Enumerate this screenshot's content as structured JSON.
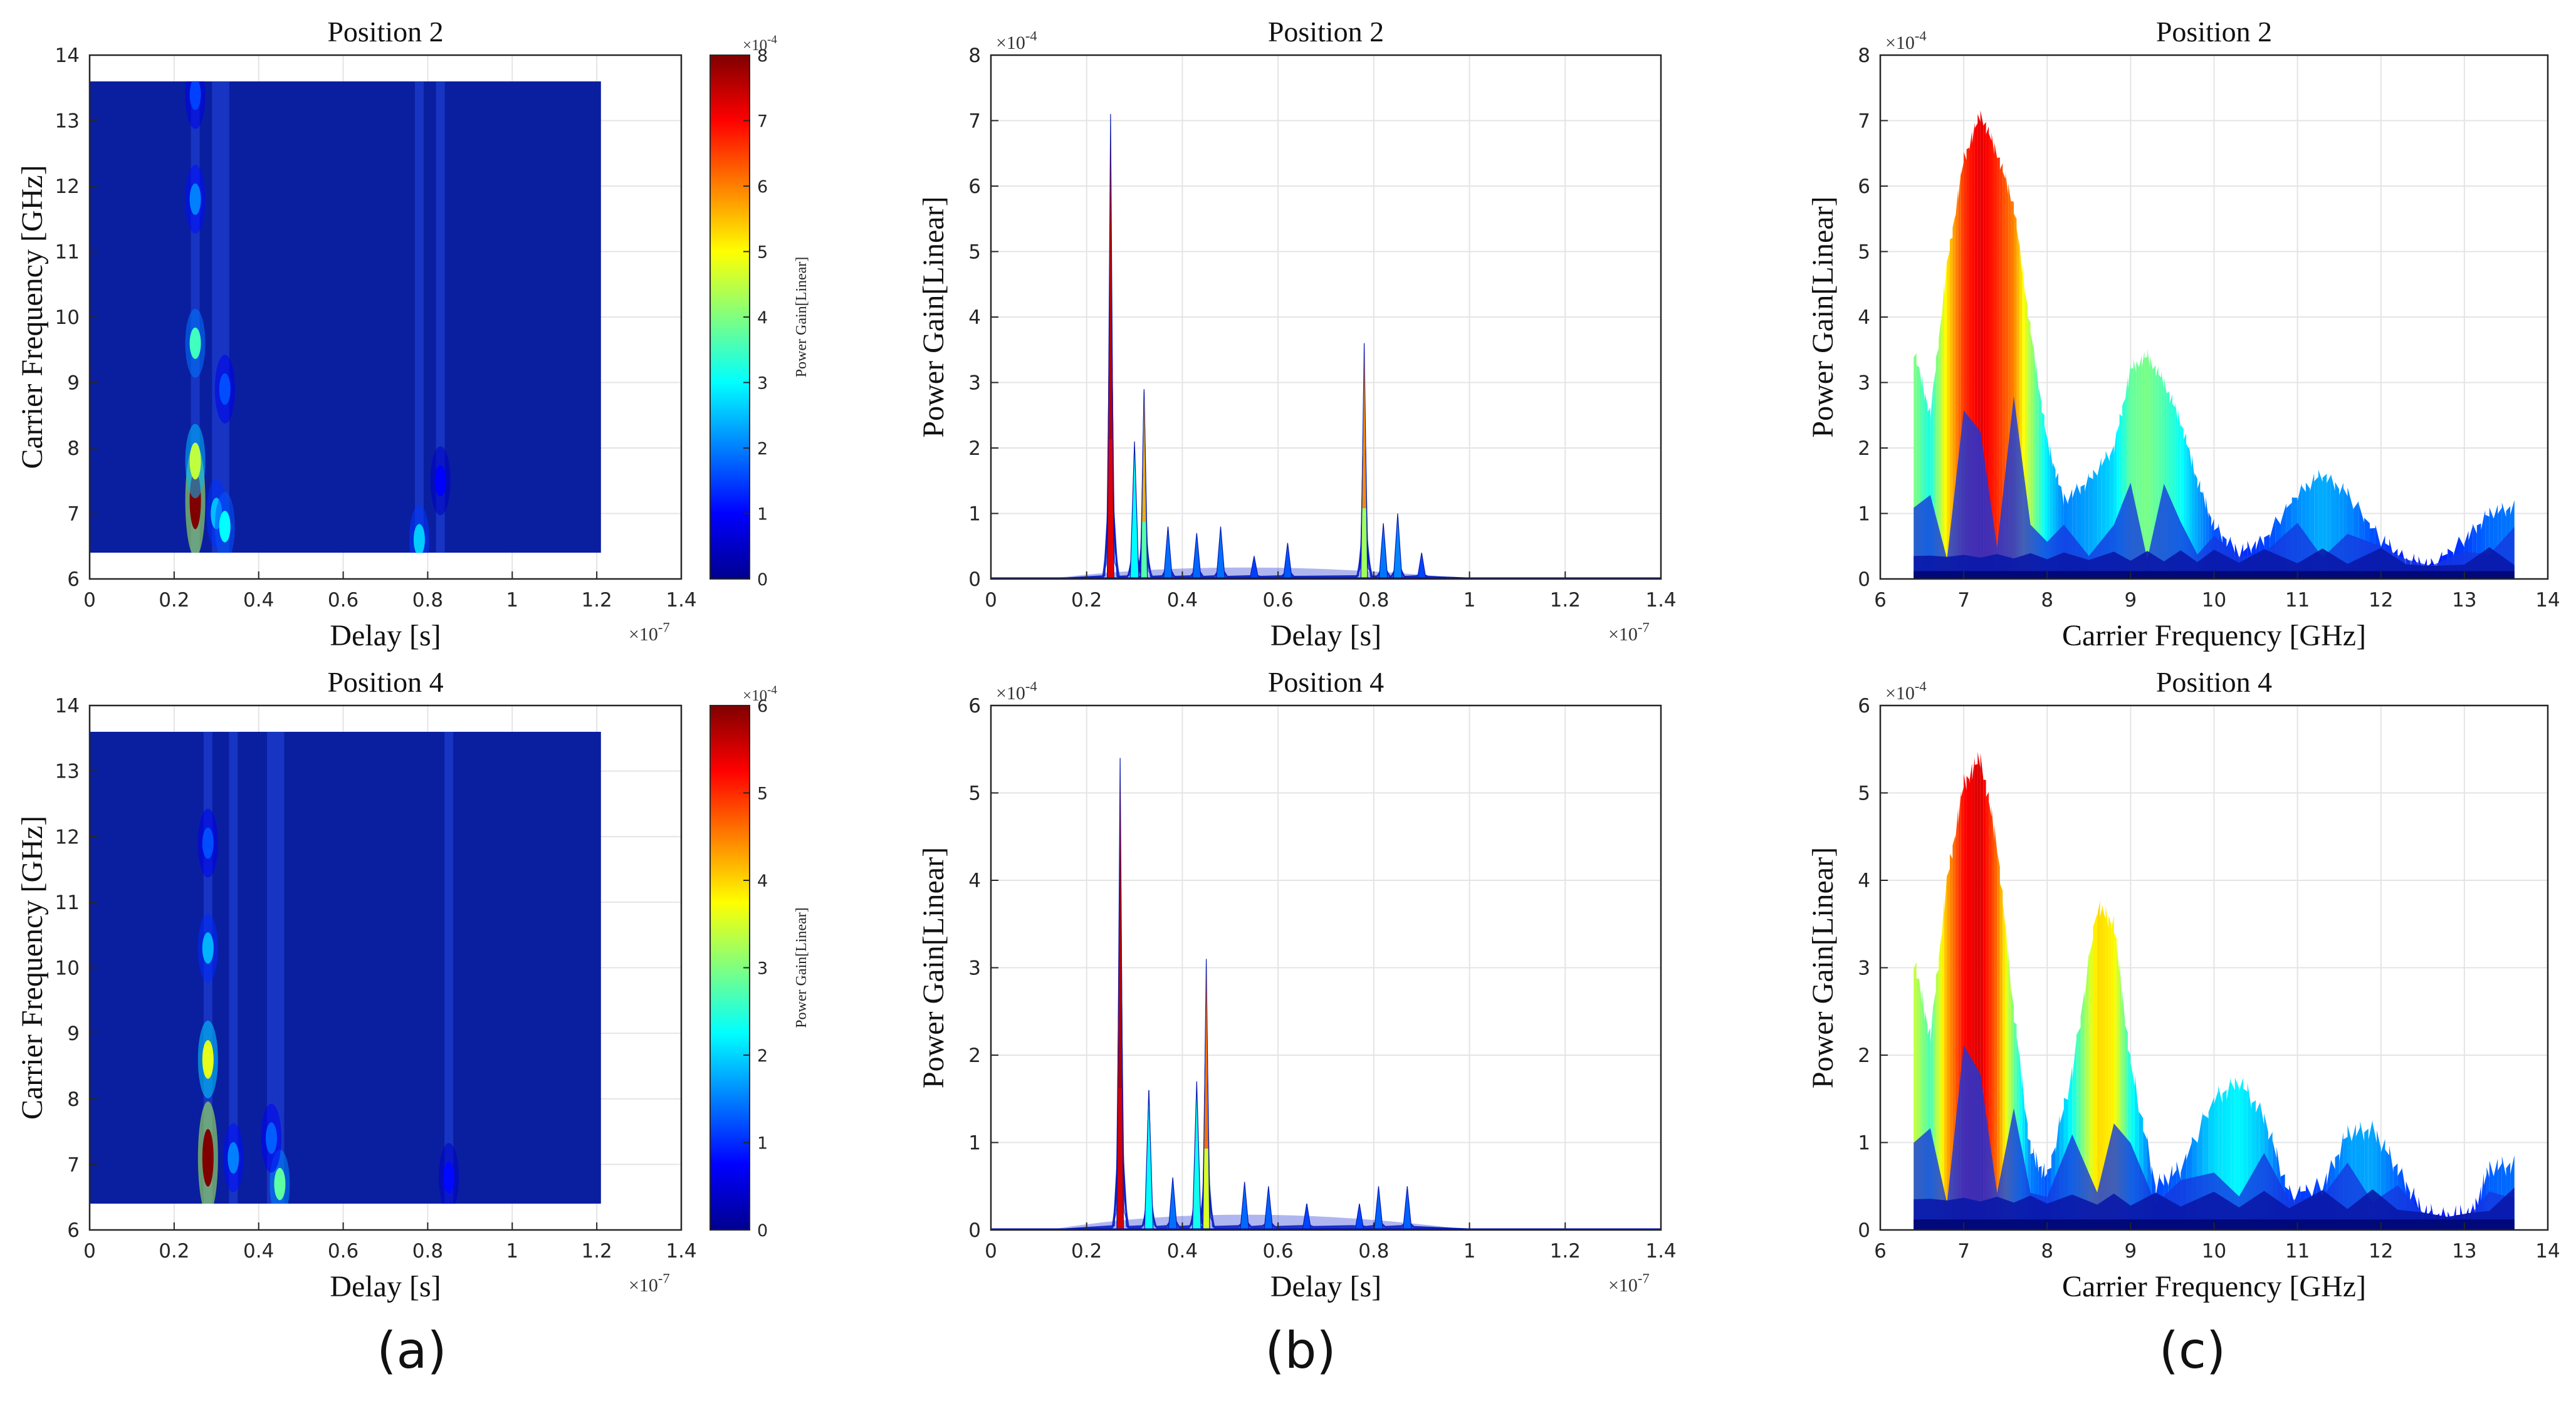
{
  "chart_data": [
    {
      "id": "a2",
      "type": "heatmap",
      "title": "Position 2",
      "xlabel": "Delay [s]",
      "ylabel": "Carrier Frequency [GHz]",
      "xlim": [
        0,
        1.4
      ],
      "ylim": [
        6,
        14
      ],
      "xticks": [
        "0",
        "0.2",
        "0.4",
        "0.6",
        "0.8",
        "1",
        "1.2",
        "1.4"
      ],
      "yticks": [
        "6",
        "7",
        "8",
        "9",
        "10",
        "11",
        "12",
        "13",
        "14"
      ],
      "xexponent": "×10^-7",
      "data_extent": {
        "delay": [
          0,
          1.21
        ],
        "freq": [
          6.4,
          13.6
        ]
      },
      "colorbar": {
        "label": "Power Gain[Linear]",
        "ticks": [
          "0",
          "1",
          "2",
          "3",
          "4",
          "5",
          "6",
          "7",
          "8"
        ],
        "max": 8,
        "exponent": "×10^-4"
      },
      "hotspots": [
        {
          "delay": 0.25,
          "freq": 7.2,
          "value": 8.0
        },
        {
          "delay": 0.25,
          "freq": 7.8,
          "value": 4.5
        },
        {
          "delay": 0.25,
          "freq": 9.6,
          "value": 3.5
        },
        {
          "delay": 0.25,
          "freq": 11.8,
          "value": 2.0
        },
        {
          "delay": 0.25,
          "freq": 13.4,
          "value": 1.5
        },
        {
          "delay": 0.3,
          "freq": 7.0,
          "value": 2.5
        },
        {
          "delay": 0.32,
          "freq": 6.8,
          "value": 3.0
        },
        {
          "delay": 0.32,
          "freq": 8.9,
          "value": 1.6
        },
        {
          "delay": 0.78,
          "freq": 6.6,
          "value": 2.6
        },
        {
          "delay": 0.83,
          "freq": 7.5,
          "value": 1.0
        }
      ]
    },
    {
      "id": "b2",
      "type": "line",
      "title": "Position 2",
      "xlabel": "Delay [s]",
      "ylabel": "Power Gain[Linear]",
      "xlim": [
        0,
        1.4
      ],
      "ylim": [
        0,
        8
      ],
      "xticks": [
        "0",
        "0.2",
        "0.4",
        "0.6",
        "0.8",
        "1",
        "1.2",
        "1.4"
      ],
      "yticks": [
        "0",
        "1",
        "2",
        "3",
        "4",
        "5",
        "6",
        "7",
        "8"
      ],
      "xexponent": "×10^-7",
      "yexponent": "×10^-4",
      "peaks": [
        {
          "x": 0.25,
          "y": 7.1
        },
        {
          "x": 0.3,
          "y": 2.1
        },
        {
          "x": 0.32,
          "y": 2.9
        },
        {
          "x": 0.37,
          "y": 0.8
        },
        {
          "x": 0.43,
          "y": 0.7
        },
        {
          "x": 0.48,
          "y": 0.8
        },
        {
          "x": 0.55,
          "y": 0.35
        },
        {
          "x": 0.62,
          "y": 0.55
        },
        {
          "x": 0.78,
          "y": 3.6
        },
        {
          "x": 0.82,
          "y": 0.85
        },
        {
          "x": 0.85,
          "y": 1.0
        },
        {
          "x": 0.9,
          "y": 0.4
        }
      ]
    },
    {
      "id": "c2",
      "type": "area",
      "title": "Position 2",
      "xlabel": "Carrier Frequency [GHz]",
      "ylabel": "Power Gain[Linear]",
      "xlim": [
        6,
        14
      ],
      "ylim": [
        0,
        8
      ],
      "xticks": [
        "6",
        "7",
        "8",
        "9",
        "10",
        "11",
        "12",
        "13",
        "14"
      ],
      "yticks": [
        "0",
        "1",
        "2",
        "3",
        "4",
        "5",
        "6",
        "7",
        "8"
      ],
      "yexponent": "×10^-4",
      "envelope": {
        "x": [
          6.4,
          6.6,
          6.8,
          7.0,
          7.2,
          7.4,
          7.6,
          7.8,
          8.0,
          8.2,
          8.5,
          8.8,
          9.0,
          9.2,
          9.4,
          9.6,
          9.8,
          10.0,
          10.3,
          10.6,
          11.0,
          11.3,
          11.6,
          12.0,
          12.3,
          12.6,
          13.0,
          13.3,
          13.6
        ],
        "y": [
          3.5,
          2.5,
          4.8,
          6.4,
          7.1,
          6.5,
          5.7,
          3.8,
          2.1,
          1.2,
          1.5,
          2.0,
          3.2,
          3.4,
          3.0,
          2.4,
          1.5,
          0.8,
          0.4,
          0.6,
          1.3,
          1.6,
          1.3,
          0.6,
          0.3,
          0.2,
          0.6,
          1.0,
          1.1
        ]
      }
    },
    {
      "id": "a4",
      "type": "heatmap",
      "title": "Position 4",
      "xlabel": "Delay [s]",
      "ylabel": "Carrier Frequency [GHz]",
      "xlim": [
        0,
        1.4
      ],
      "ylim": [
        6,
        14
      ],
      "xticks": [
        "0",
        "0.2",
        "0.4",
        "0.6",
        "0.8",
        "1",
        "1.2",
        "1.4"
      ],
      "yticks": [
        "6",
        "7",
        "8",
        "9",
        "10",
        "11",
        "12",
        "13",
        "14"
      ],
      "xexponent": "×10^-7",
      "data_extent": {
        "delay": [
          0,
          1.21
        ],
        "freq": [
          6.4,
          13.6
        ]
      },
      "colorbar": {
        "label": "Power Gain[Linear]",
        "ticks": [
          "0",
          "1",
          "2",
          "3",
          "4",
          "5",
          "6"
        ],
        "max": 6,
        "exponent": "×10^-4"
      },
      "hotspots": [
        {
          "delay": 0.28,
          "freq": 7.1,
          "value": 6.0
        },
        {
          "delay": 0.28,
          "freq": 8.6,
          "value": 3.6
        },
        {
          "delay": 0.28,
          "freq": 10.3,
          "value": 1.8
        },
        {
          "delay": 0.28,
          "freq": 11.9,
          "value": 1.2
        },
        {
          "delay": 0.34,
          "freq": 7.1,
          "value": 1.5
        },
        {
          "delay": 0.45,
          "freq": 6.7,
          "value": 2.8
        },
        {
          "delay": 0.43,
          "freq": 7.4,
          "value": 1.3
        },
        {
          "delay": 0.85,
          "freq": 6.8,
          "value": 0.8
        }
      ]
    },
    {
      "id": "b4",
      "type": "line",
      "title": "Position 4",
      "xlabel": "Delay [s]",
      "ylabel": "Power Gain[Linear]",
      "xlim": [
        0,
        1.4
      ],
      "ylim": [
        0,
        6
      ],
      "xticks": [
        "0",
        "0.2",
        "0.4",
        "0.6",
        "0.8",
        "1",
        "1.2",
        "1.4"
      ],
      "yticks": [
        "0",
        "1",
        "2",
        "3",
        "4",
        "5",
        "6"
      ],
      "xexponent": "×10^-7",
      "yexponent": "×10^-4",
      "peaks": [
        {
          "x": 0.27,
          "y": 5.4
        },
        {
          "x": 0.33,
          "y": 1.6
        },
        {
          "x": 0.38,
          "y": 0.6
        },
        {
          "x": 0.43,
          "y": 1.7
        },
        {
          "x": 0.45,
          "y": 3.1
        },
        {
          "x": 0.53,
          "y": 0.55
        },
        {
          "x": 0.58,
          "y": 0.5
        },
        {
          "x": 0.66,
          "y": 0.3
        },
        {
          "x": 0.77,
          "y": 0.3
        },
        {
          "x": 0.81,
          "y": 0.5
        },
        {
          "x": 0.87,
          "y": 0.5
        }
      ]
    },
    {
      "id": "c4",
      "type": "area",
      "title": "Position 4",
      "xlabel": "Carrier Frequency [GHz]",
      "ylabel": "Power Gain[Linear]",
      "xlim": [
        6,
        14
      ],
      "ylim": [
        0,
        6
      ],
      "xticks": [
        "6",
        "7",
        "8",
        "9",
        "10",
        "11",
        "12",
        "13",
        "14"
      ],
      "yticks": [
        "0",
        "1",
        "2",
        "3",
        "4",
        "5",
        "6"
      ],
      "yexponent": "×10^-4",
      "envelope": {
        "x": [
          6.4,
          6.6,
          6.8,
          7.0,
          7.2,
          7.4,
          7.6,
          7.8,
          8.0,
          8.3,
          8.6,
          8.8,
          9.0,
          9.3,
          9.6,
          10.0,
          10.3,
          10.6,
          10.9,
          11.3,
          11.6,
          11.9,
          12.2,
          12.5,
          12.8,
          13.1,
          13.3,
          13.6
        ],
        "y": [
          3.1,
          2.2,
          4.0,
          5.1,
          5.4,
          4.4,
          2.5,
          0.9,
          0.6,
          1.8,
          3.7,
          3.5,
          1.9,
          0.5,
          0.7,
          1.5,
          1.7,
          1.3,
          0.4,
          0.5,
          1.1,
          1.15,
          0.7,
          0.2,
          0.15,
          0.2,
          0.7,
          0.75
        ]
      }
    }
  ],
  "panel_labels": [
    "(a)",
    "(b)",
    "(c)"
  ]
}
